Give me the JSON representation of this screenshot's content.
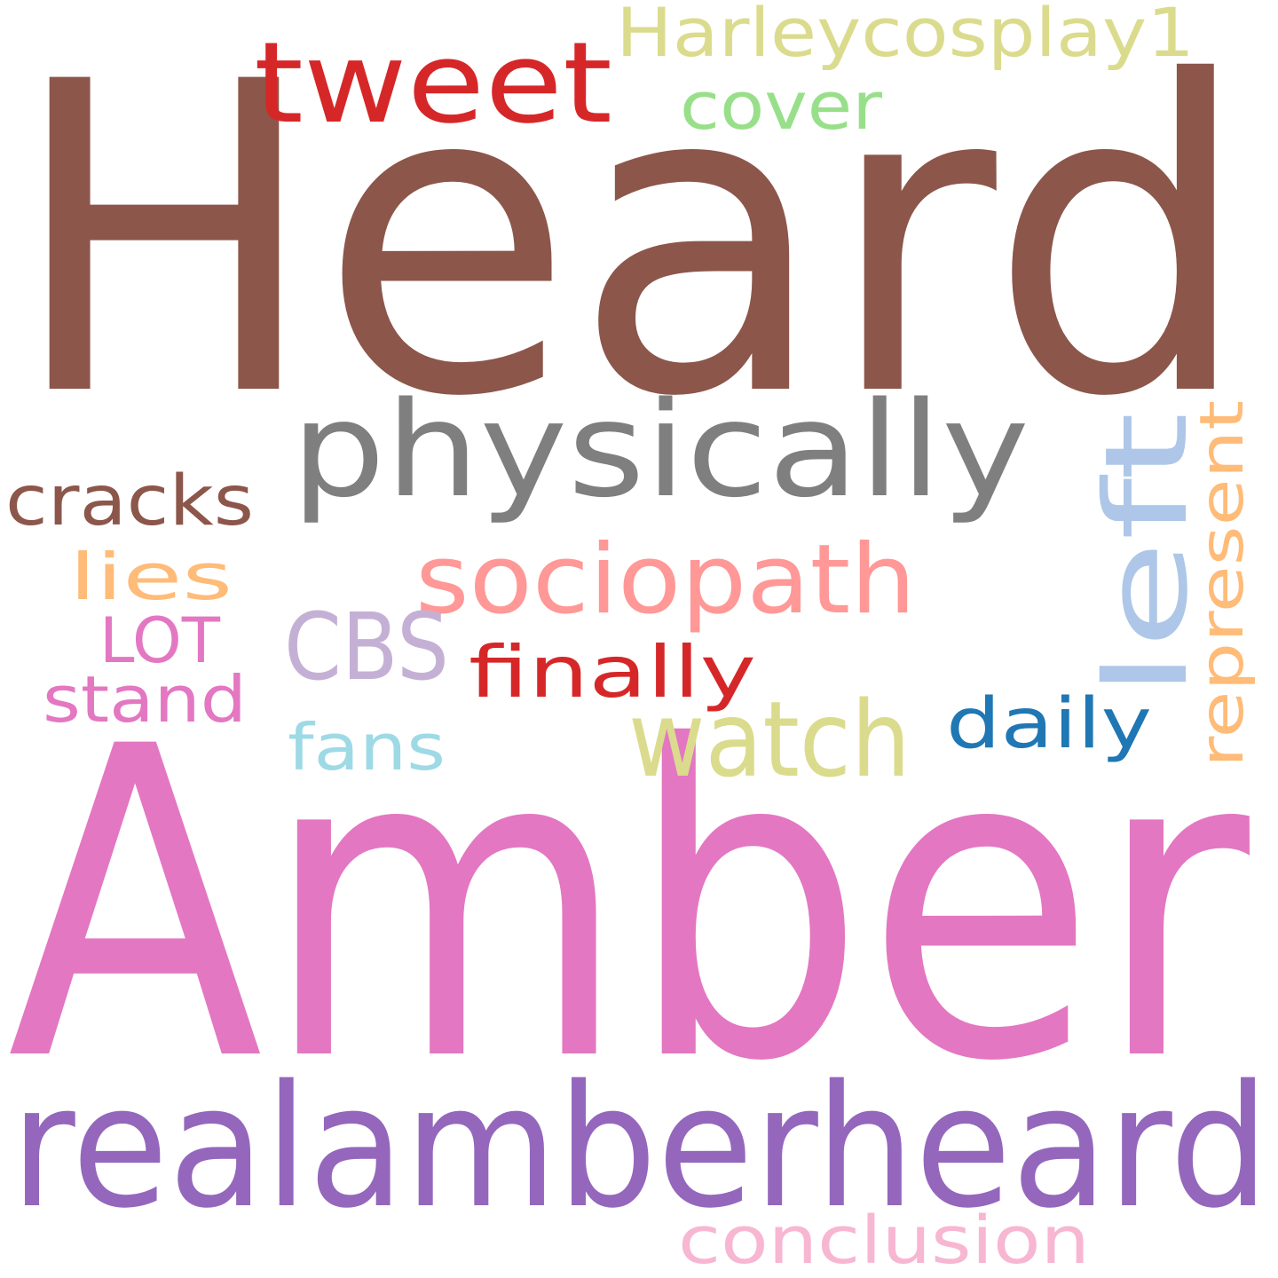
{
  "words": [
    {
      "text": "Heard",
      "color": "#8c564b"
    },
    {
      "text": "Amber",
      "color": "#e377c2"
    },
    {
      "text": "realamberheard",
      "color": "#9467bd"
    },
    {
      "text": "physically",
      "color": "#7f7f7f"
    },
    {
      "text": "tweet",
      "color": "#d62728"
    },
    {
      "text": "left",
      "color": "#aec7e8"
    },
    {
      "text": "sociopath",
      "color": "#ff9896"
    },
    {
      "text": "watch",
      "color": "#dbdb8d"
    },
    {
      "text": "CBS",
      "color": "#c5b0d5"
    },
    {
      "text": "Harleycosplay1",
      "color": "#dbdb8d"
    },
    {
      "text": "represent",
      "color": "#ffbb78"
    },
    {
      "text": "cracks",
      "color": "#8c564b"
    },
    {
      "text": "finally",
      "color": "#d62728"
    },
    {
      "text": "daily",
      "color": "#1f77b4"
    },
    {
      "text": "conclusion",
      "color": "#f7b6d2"
    },
    {
      "text": "cover",
      "color": "#98df8a"
    },
    {
      "text": "lies",
      "color": "#ffbb78"
    },
    {
      "text": "LOT",
      "color": "#e377c2"
    },
    {
      "text": "stand",
      "color": "#e377c2"
    },
    {
      "text": "fans",
      "color": "#9edae5"
    }
  ]
}
